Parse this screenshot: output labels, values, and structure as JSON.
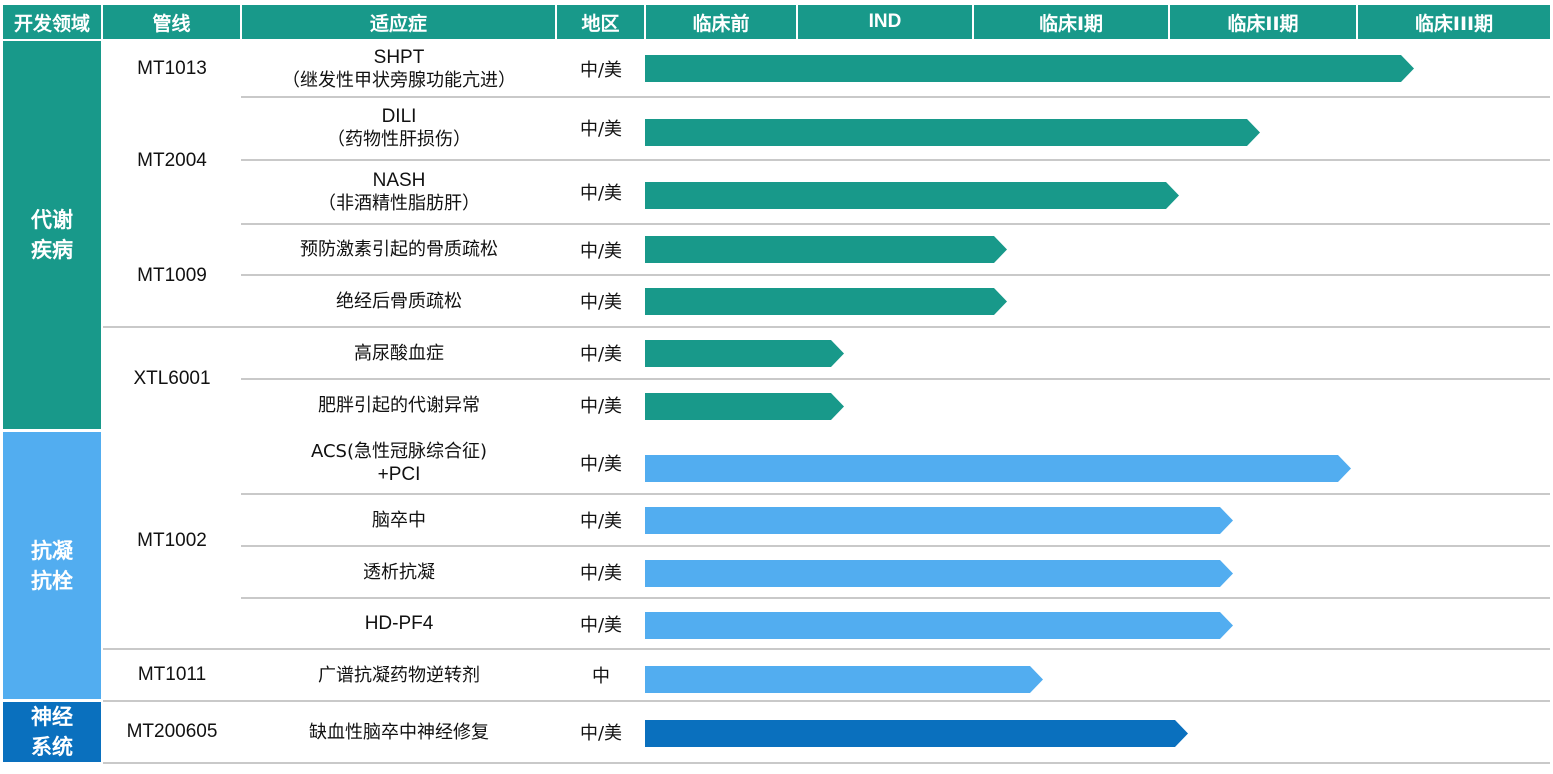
{
  "headers": {
    "area": "开发领域",
    "pipeline": "管线",
    "indication": "适应症",
    "region": "地区",
    "phases": [
      "临床前",
      "IND",
      "临床I期",
      "临床II期",
      "临床III期"
    ]
  },
  "areas": [
    {
      "label": "代谢疾病",
      "color": "#18998a"
    },
    {
      "label": "抗凝抗栓",
      "color": "#52adf0"
    },
    {
      "label": "神经系统",
      "color": "#0a70be"
    }
  ],
  "pipelines": [
    {
      "label": "MT1013"
    },
    {
      "label": "MT2004"
    },
    {
      "label": "MT1009"
    },
    {
      "label": "XTL6001"
    },
    {
      "label": "MT1002"
    },
    {
      "label": "MT1011"
    },
    {
      "label": "MT200605"
    }
  ],
  "chart_data": {
    "type": "bar",
    "orientation": "horizontal",
    "phase_scale": [
      "临床前",
      "IND",
      "临床I期",
      "临床II期",
      "临床III期"
    ],
    "rows": [
      {
        "area": "代谢疾病",
        "pipeline": "MT1013",
        "indication_en": "SHPT",
        "indication": "（继发性甲状旁腺功能亢进）",
        "region": "中/美",
        "progress": 0.85,
        "color": "#18998a"
      },
      {
        "area": "代谢疾病",
        "pipeline": "MT2004",
        "indication_en": "DILI",
        "indication": "（药物性肝损伤）",
        "region": "中/美",
        "progress": 0.68,
        "color": "#18998a"
      },
      {
        "area": "代谢疾病",
        "pipeline": "MT2004",
        "indication_en": "NASH",
        "indication": "（非酒精性脂肪肝）",
        "region": "中/美",
        "progress": 0.59,
        "color": "#18998a"
      },
      {
        "area": "代谢疾病",
        "pipeline": "MT1009",
        "indication_en": "",
        "indication": "预防激素引起的骨质疏松",
        "region": "中/美",
        "progress": 0.4,
        "color": "#18998a"
      },
      {
        "area": "代谢疾病",
        "pipeline": "MT1009",
        "indication_en": "",
        "indication": "绝经后骨质疏松",
        "region": "中/美",
        "progress": 0.4,
        "color": "#18998a"
      },
      {
        "area": "代谢疾病",
        "pipeline": "XTL6001",
        "indication_en": "",
        "indication": "高尿酸血症",
        "region": "中/美",
        "progress": 0.22,
        "color": "#18998a"
      },
      {
        "area": "代谢疾病",
        "pipeline": "XTL6001",
        "indication_en": "",
        "indication": "肥胖引起的代谢异常",
        "region": "中/美",
        "progress": 0.22,
        "color": "#18998a"
      },
      {
        "area": "抗凝抗栓",
        "pipeline": "MT1002",
        "indication_en": "",
        "indication": "ACS(急性冠脉综合征)",
        "indication_en2": "+PCI",
        "region": "中/美",
        "progress": 0.78,
        "color": "#52adf0"
      },
      {
        "area": "抗凝抗栓",
        "pipeline": "MT1002",
        "indication_en": "",
        "indication": "脑卒中",
        "region": "中/美",
        "progress": 0.65,
        "color": "#52adf0"
      },
      {
        "area": "抗凝抗栓",
        "pipeline": "MT1002",
        "indication_en": "",
        "indication": "透析抗凝",
        "region": "中/美",
        "progress": 0.65,
        "color": "#52adf0"
      },
      {
        "area": "抗凝抗栓",
        "pipeline": "MT1002",
        "indication_en": "HD-PF4",
        "indication": "",
        "region": "中/美",
        "progress": 0.65,
        "color": "#52adf0"
      },
      {
        "area": "抗凝抗栓",
        "pipeline": "MT1011",
        "indication_en": "",
        "indication": "广谱抗凝药物逆转剂",
        "region": "中",
        "progress": 0.44,
        "color": "#52adf0"
      },
      {
        "area": "神经系统",
        "pipeline": "MT200605",
        "indication_en": "",
        "indication": "缺血性脑卒中神经修复",
        "region": "中/美",
        "progress": 0.6,
        "color": "#0a70be"
      }
    ]
  },
  "colors": {
    "header_bg": "#18998a",
    "divider": "#c9c9c9"
  }
}
